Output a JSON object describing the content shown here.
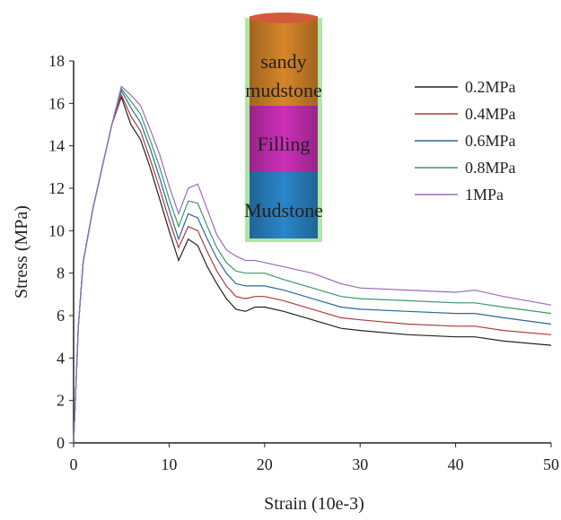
{
  "chart_data": {
    "type": "line",
    "x_label": "Strain (10e-3)",
    "y_label": "Stress (MPa)",
    "x": [
      0,
      0.5,
      1,
      2,
      3,
      4,
      5,
      6,
      7,
      8,
      9,
      10,
      11,
      12,
      13,
      14,
      15,
      16,
      17,
      18,
      19,
      20,
      22,
      25,
      28,
      30,
      35,
      40,
      42,
      45,
      50
    ],
    "series": [
      {
        "name": "0.2MPa",
        "color": "#222222",
        "values": [
          0,
          5.5,
          8.5,
          11,
          13,
          15,
          16.3,
          15,
          14.3,
          13,
          11.5,
          10,
          8.6,
          9.6,
          9.3,
          8.3,
          7.5,
          6.8,
          6.3,
          6.2,
          6.4,
          6.4,
          6.2,
          5.8,
          5.4,
          5.3,
          5.1,
          5.0,
          5.0,
          4.8,
          4.6
        ]
      },
      {
        "name": "0.4MPa",
        "color": "#b03a3a",
        "values": [
          0,
          5.5,
          8.5,
          11,
          13,
          15,
          16.4,
          15.4,
          14.7,
          13.4,
          12,
          10.5,
          9.2,
          10.2,
          10,
          9,
          8.1,
          7.4,
          6.9,
          6.8,
          6.9,
          6.9,
          6.7,
          6.3,
          5.9,
          5.8,
          5.6,
          5.5,
          5.5,
          5.3,
          5.1
        ]
      },
      {
        "name": "0.6MPa",
        "color": "#2a6a96",
        "values": [
          0,
          5.5,
          8.5,
          11,
          13,
          15,
          16.6,
          15.8,
          15.1,
          13.9,
          12.5,
          11,
          9.6,
          10.8,
          10.6,
          9.6,
          8.7,
          8,
          7.5,
          7.4,
          7.4,
          7.4,
          7.2,
          6.8,
          6.4,
          6.3,
          6.2,
          6.1,
          6.1,
          5.9,
          5.6
        ]
      },
      {
        "name": "0.8MPa",
        "color": "#3a9a6a",
        "values": [
          0,
          5.5,
          8.5,
          11,
          13,
          15,
          16.7,
          16.1,
          15.5,
          14.3,
          13,
          11.5,
          10.2,
          11.4,
          11.3,
          10.2,
          9.2,
          8.5,
          8.1,
          8,
          8,
          8,
          7.7,
          7.3,
          6.9,
          6.8,
          6.7,
          6.6,
          6.6,
          6.4,
          6.1
        ]
      },
      {
        "name": "1MPa",
        "color": "#9a6ac0",
        "values": [
          0,
          5.5,
          8.5,
          11,
          13,
          15,
          16.8,
          16.4,
          15.9,
          14.8,
          13.6,
          12.1,
          10.8,
          12,
          12.2,
          11,
          9.8,
          9.1,
          8.8,
          8.6,
          8.6,
          8.5,
          8.3,
          8,
          7.5,
          7.3,
          7.2,
          7.1,
          7.2,
          6.9,
          6.5
        ]
      }
    ],
    "xlim": [
      0,
      50
    ],
    "xticks": [
      0,
      10,
      20,
      30,
      40,
      50
    ],
    "ylim": [
      0,
      18
    ],
    "yticks": [
      0,
      2,
      4,
      6,
      8,
      10,
      12,
      14,
      16,
      18
    ],
    "annotations": [
      "sandy",
      "mudstone",
      "Filling",
      "Mudstone"
    ]
  }
}
